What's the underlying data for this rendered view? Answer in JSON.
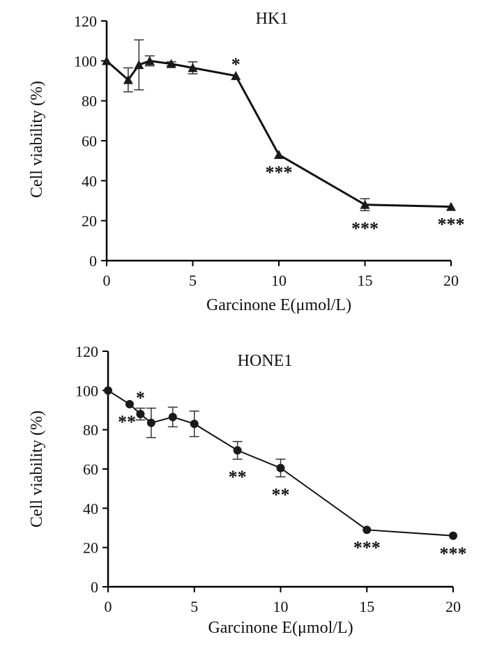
{
  "chart_data": [
    {
      "type": "line",
      "title": "HK1",
      "xlabel": "Garcinone E(μmol/L)",
      "ylabel": "Cell viability (%)",
      "xlim": [
        0,
        20
      ],
      "ylim": [
        0,
        120
      ],
      "xticks": [
        0,
        5,
        10,
        15,
        20
      ],
      "yticks": [
        0,
        20,
        40,
        60,
        80,
        100,
        120
      ],
      "marker": "triangle",
      "series": [
        {
          "name": "HK1",
          "x": [
            0,
            1.25,
            1.875,
            2.5,
            3.75,
            5,
            7.5,
            10,
            15,
            20
          ],
          "y": [
            100,
            90.5,
            98,
            100,
            98.5,
            96.5,
            92.5,
            53,
            28,
            27
          ],
          "err": [
            0,
            6,
            12.5,
            2.5,
            1,
            3,
            0,
            0,
            3,
            0
          ],
          "significance": [
            "",
            "",
            "",
            "",
            "",
            "",
            "*",
            "***",
            "***",
            "***"
          ]
        }
      ]
    },
    {
      "type": "line",
      "title": "HONE1",
      "xlabel": "Garcinone E(μmol/L)",
      "ylabel": "Cell viability (%)",
      "xlim": [
        0,
        20
      ],
      "ylim": [
        0,
        120
      ],
      "xticks": [
        0,
        5,
        10,
        15,
        20
      ],
      "yticks": [
        0,
        20,
        40,
        60,
        80,
        100,
        120
      ],
      "marker": "circle",
      "series": [
        {
          "name": "HONE1",
          "x": [
            0,
            1.25,
            1.875,
            2.5,
            3.75,
            5,
            7.5,
            10,
            15,
            20
          ],
          "y": [
            100,
            93,
            88,
            83.5,
            86.5,
            83,
            69.5,
            60.5,
            29,
            26
          ],
          "err": [
            0,
            0,
            3,
            7.5,
            5,
            6.5,
            4.5,
            4.5,
            0,
            0
          ],
          "significance": [
            "",
            "**",
            "*",
            "",
            "",
            "",
            "**",
            "**",
            "***",
            "***"
          ]
        }
      ]
    }
  ]
}
